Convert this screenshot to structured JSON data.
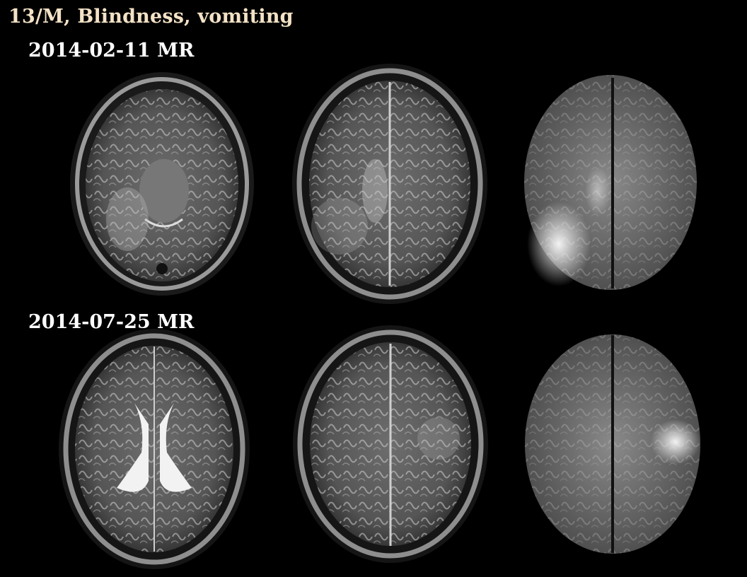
{
  "caption": "13/M, Blindness, vomiting",
  "rows": [
    {
      "date_label": "2014-02-11 MR"
    },
    {
      "date_label": "2014-07-25 MR"
    }
  ]
}
